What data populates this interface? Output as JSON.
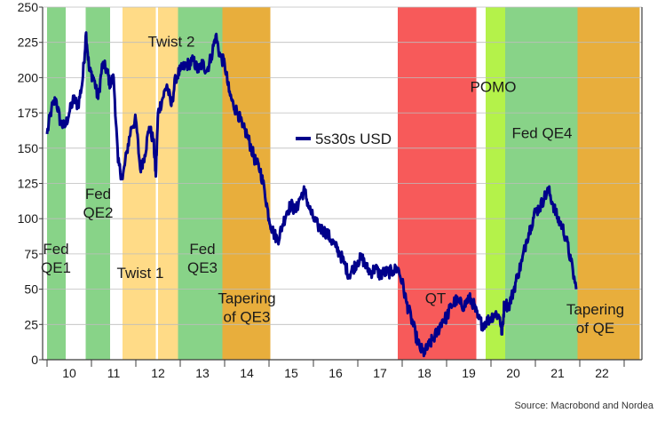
{
  "chart_data": {
    "type": "line",
    "title": "",
    "xlabel": "",
    "ylabel": "",
    "source": "Source: Macrobond and Nordea",
    "xlim": [
      2009.4,
      2022.9
    ],
    "ylim": [
      0,
      250
    ],
    "yticks": [
      0,
      25,
      50,
      75,
      100,
      125,
      150,
      175,
      200,
      225,
      250
    ],
    "xticks": [
      2010,
      2011,
      2012,
      2013,
      2014,
      2015,
      2016,
      2017,
      2018,
      2019,
      2020,
      2021,
      2022
    ],
    "xtick_labels": [
      "10",
      "11",
      "12",
      "13",
      "14",
      "15",
      "16",
      "17",
      "18",
      "19",
      "20",
      "21",
      "22"
    ],
    "grid": true,
    "legend": {
      "position": "center-right",
      "label": "5s30s USD",
      "color": "#00008b"
    },
    "colors": {
      "green": "#88d388",
      "yellow": "#ffdb87",
      "orange": "#e8ae3c",
      "red": "#f75a5a",
      "lime": "#b4f24a",
      "line": "#00008b",
      "grid": "#bdbdbd",
      "axis": "#3c3c3c"
    },
    "regions": [
      {
        "name": "qe1",
        "start": 2009.5,
        "end": 2009.92,
        "color": "green"
      },
      {
        "name": "qe2",
        "start": 2010.37,
        "end": 2010.92,
        "color": "green"
      },
      {
        "name": "twist1",
        "start": 2011.2,
        "end": 2011.95,
        "color": "yellow"
      },
      {
        "name": "twist2",
        "start": 2012.0,
        "end": 2012.45,
        "color": "yellow"
      },
      {
        "name": "qe3",
        "start": 2012.45,
        "end": 2013.45,
        "color": "green"
      },
      {
        "name": "tapering-qe3",
        "start": 2013.45,
        "end": 2014.53,
        "color": "orange"
      },
      {
        "name": "qt",
        "start": 2017.4,
        "end": 2019.17,
        "color": "red"
      },
      {
        "name": "pomo",
        "start": 2019.38,
        "end": 2019.82,
        "color": "lime"
      },
      {
        "name": "qe4",
        "start": 2019.82,
        "end": 2021.45,
        "color": "green"
      },
      {
        "name": "tapering-qe",
        "start": 2021.45,
        "end": 2022.85,
        "color": "orange"
      }
    ],
    "annotations": [
      {
        "name": "fed-qe1",
        "lines": [
          "Fed",
          "QE1"
        ],
        "x": 2009.7,
        "y": 75
      },
      {
        "name": "fed-qe2",
        "lines": [
          "Fed",
          "QE2"
        ],
        "x": 2010.65,
        "y": 114
      },
      {
        "name": "twist-1",
        "lines": [
          "Twist 1"
        ],
        "x": 2011.6,
        "y": 58
      },
      {
        "name": "twist-2",
        "lines": [
          "Twist 2"
        ],
        "x": 2012.3,
        "y": 222
      },
      {
        "name": "fed-qe3",
        "lines": [
          "Fed",
          "QE3"
        ],
        "x": 2013.0,
        "y": 75
      },
      {
        "name": "tapering-qe3",
        "lines": [
          "Tapering",
          "of QE3"
        ],
        "x": 2014.0,
        "y": 40
      },
      {
        "name": "qt",
        "lines": [
          "QT"
        ],
        "x": 2018.25,
        "y": 40
      },
      {
        "name": "pomo",
        "lines": [
          "POMO"
        ],
        "x": 2019.55,
        "y": 190
      },
      {
        "name": "fed-qe4",
        "lines": [
          "Fed QE4"
        ],
        "x": 2020.65,
        "y": 157
      },
      {
        "name": "tapering-qe",
        "lines": [
          "Tapering",
          "of QE"
        ],
        "x": 2021.85,
        "y": 32
      }
    ],
    "series": [
      {
        "name": "5s30s USD",
        "x": [
          2009.5,
          2009.6,
          2009.7,
          2009.8,
          2009.9,
          2010.0,
          2010.1,
          2010.2,
          2010.3,
          2010.38,
          2010.45,
          2010.55,
          2010.65,
          2010.75,
          2010.85,
          2010.92,
          2011.0,
          2011.1,
          2011.2,
          2011.3,
          2011.4,
          2011.5,
          2011.6,
          2011.7,
          2011.8,
          2011.9,
          2011.95,
          2012.0,
          2012.1,
          2012.2,
          2012.3,
          2012.4,
          2012.5,
          2012.6,
          2012.7,
          2012.8,
          2012.9,
          2013.0,
          2013.1,
          2013.2,
          2013.3,
          2013.4,
          2013.5,
          2013.6,
          2013.7,
          2013.8,
          2013.9,
          2014.0,
          2014.1,
          2014.2,
          2014.3,
          2014.4,
          2014.5,
          2014.6,
          2014.7,
          2014.8,
          2014.9,
          2015.0,
          2015.1,
          2015.2,
          2015.3,
          2015.4,
          2015.5,
          2015.6,
          2015.7,
          2015.8,
          2015.9,
          2016.0,
          2016.1,
          2016.2,
          2016.3,
          2016.4,
          2016.5,
          2016.6,
          2016.7,
          2016.8,
          2016.9,
          2017.0,
          2017.1,
          2017.2,
          2017.3,
          2017.4,
          2017.5,
          2017.6,
          2017.7,
          2017.8,
          2017.9,
          2018.0,
          2018.1,
          2018.2,
          2018.3,
          2018.4,
          2018.5,
          2018.6,
          2018.7,
          2018.8,
          2018.9,
          2019.0,
          2019.1,
          2019.2,
          2019.3,
          2019.4,
          2019.5,
          2019.6,
          2019.7,
          2019.75,
          2019.8,
          2019.9,
          2020.0,
          2020.1,
          2020.2,
          2020.3,
          2020.4,
          2020.5,
          2020.6,
          2020.7,
          2020.8,
          2020.9,
          2021.0,
          2021.1,
          2021.2,
          2021.3,
          2021.42
        ],
        "values": [
          160,
          178,
          185,
          168,
          165,
          175,
          185,
          180,
          198,
          232,
          205,
          200,
          185,
          210,
          205,
          195,
          200,
          140,
          128,
          148,
          165,
          170,
          135,
          145,
          165,
          155,
          130,
          175,
          185,
          195,
          180,
          200,
          205,
          208,
          210,
          212,
          205,
          210,
          205,
          215,
          230,
          215,
          210,
          190,
          180,
          175,
          165,
          160,
          150,
          140,
          135,
          120,
          100,
          90,
          85,
          95,
          105,
          110,
          105,
          115,
          120,
          108,
          100,
          95,
          92,
          90,
          85,
          80,
          75,
          68,
          60,
          65,
          70,
          72,
          65,
          62,
          65,
          60,
          62,
          62,
          63,
          65,
          55,
          40,
          30,
          18,
          8,
          5,
          10,
          15,
          20,
          28,
          30,
          38,
          42,
          40,
          38,
          44,
          40,
          30,
          25,
          27,
          30,
          33,
          30,
          18,
          40,
          38,
          48,
          60,
          70,
          85,
          95,
          105,
          108,
          115,
          120,
          110,
          100,
          95,
          85,
          70,
          50
        ]
      }
    ]
  }
}
